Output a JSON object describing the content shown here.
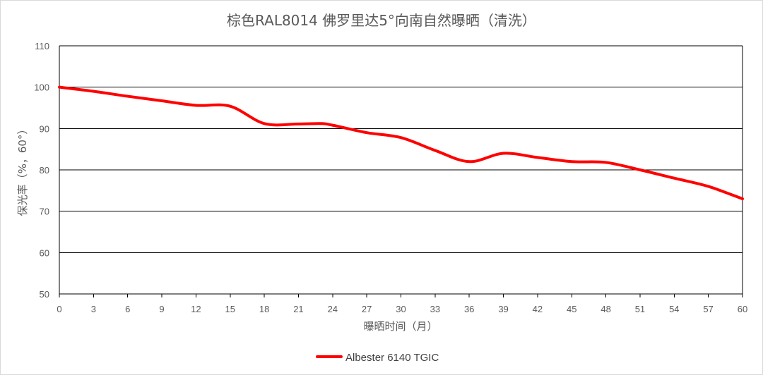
{
  "chart_data": {
    "type": "line",
    "title": "棕色RAL8014 佛罗里达5°向南自然曝晒（清洗）",
    "xlabel": "曝晒时间（月）",
    "ylabel": "保光率（%，60°）",
    "x": [
      0,
      3,
      6,
      9,
      12,
      15,
      18,
      21,
      24,
      27,
      30,
      33,
      36,
      39,
      42,
      45,
      48,
      51,
      54,
      57,
      60
    ],
    "x_ticks": [
      "0",
      "3",
      "6",
      "9",
      "12",
      "15",
      "18",
      "21",
      "24",
      "27",
      "30",
      "33",
      "36",
      "39",
      "42",
      "45",
      "48",
      "51",
      "54",
      "57",
      "60"
    ],
    "y_ticks": [
      "50",
      "60",
      "70",
      "80",
      "90",
      "100",
      "110"
    ],
    "xlim": [
      0,
      60
    ],
    "ylim": [
      50,
      110
    ],
    "grid": "horizontal",
    "legend_position": "bottom",
    "series": [
      {
        "name": "Albester 6140 TGIC",
        "color": "#ff0000",
        "points": [
          [
            0,
            100
          ],
          [
            3,
            99
          ],
          [
            6,
            97.8
          ],
          [
            9,
            96.7
          ],
          [
            12,
            95.6
          ],
          [
            15,
            95.4
          ],
          [
            18,
            91.2
          ],
          [
            21,
            91.1
          ],
          [
            23,
            91.2
          ],
          [
            24,
            90.8
          ],
          [
            27,
            89
          ],
          [
            30,
            87.8
          ],
          [
            33,
            84.7
          ],
          [
            36,
            82
          ],
          [
            39,
            84
          ],
          [
            42,
            83
          ],
          [
            45,
            82
          ],
          [
            48,
            81.8
          ],
          [
            51,
            80
          ],
          [
            54,
            78
          ],
          [
            57,
            76
          ],
          [
            60,
            73
          ]
        ]
      }
    ]
  }
}
